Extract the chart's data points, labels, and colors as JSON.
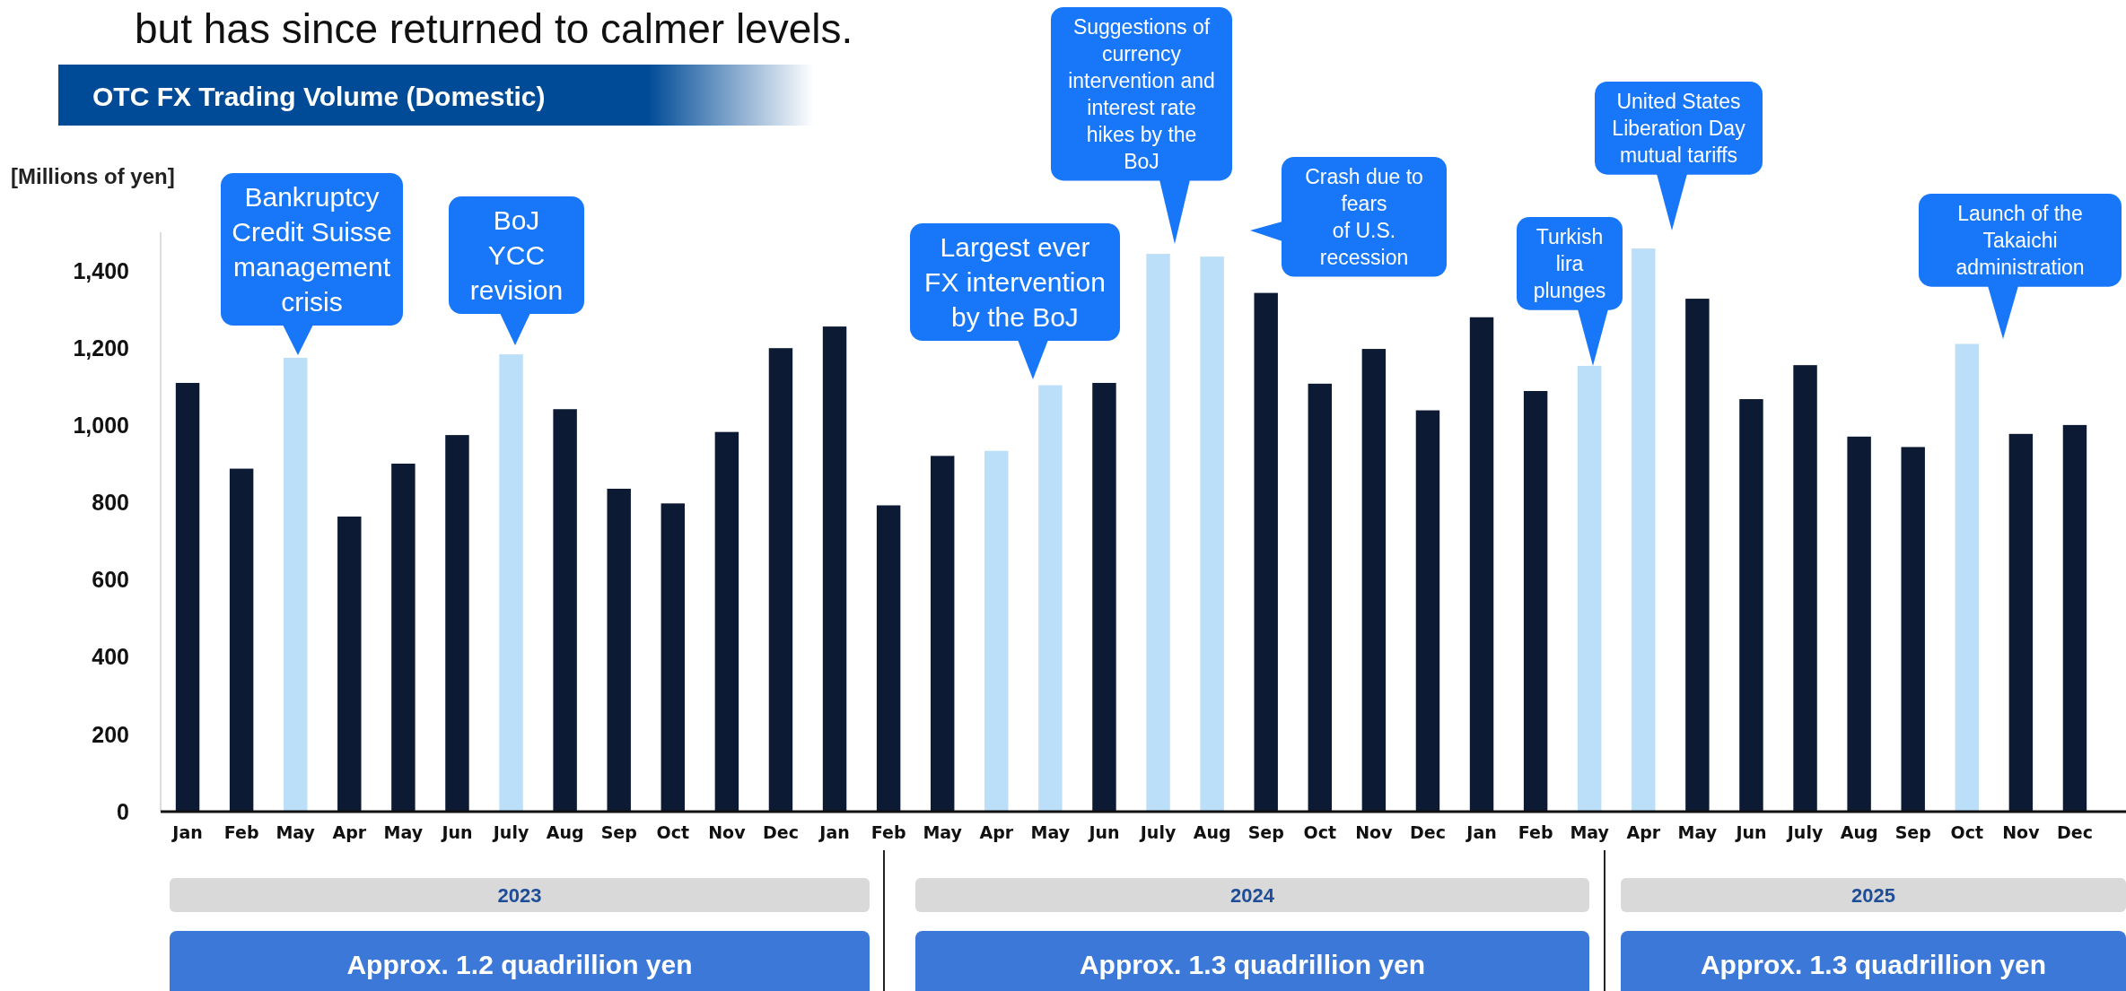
{
  "chart_data": {
    "type": "bar",
    "title": "OTC FX Trading Volume (Domestic)",
    "ylabel": "[Millions of yen]",
    "categories": [
      "Jan",
      "Feb",
      "May",
      "Apr",
      "May",
      "Jun",
      "July",
      "Aug",
      "Sep",
      "Oct",
      "Nov",
      "Dec",
      "Jan",
      "Feb",
      "May",
      "Apr",
      "May",
      "Jun",
      "July",
      "Aug",
      "Sep",
      "Oct",
      "Nov",
      "Dec",
      "Jan",
      "Feb",
      "May",
      "Apr",
      "May",
      "Jun",
      "July",
      "Aug",
      "Sep",
      "Oct",
      "Nov",
      "Dec"
    ],
    "values": [
      1110,
      888,
      1175,
      764,
      901,
      975,
      1184,
      1042,
      836,
      798,
      983,
      1200,
      1256,
      793,
      921,
      934,
      1104,
      1110,
      1444,
      1437,
      1343,
      1108,
      1198,
      1039,
      1280,
      1089,
      1154,
      1458,
      1328,
      1068,
      1156,
      971,
      944,
      1211,
      978,
      1001
    ],
    "colors": [
      "#0d1a33",
      "#0d1a33",
      "#bbdff8",
      "#0d1a33",
      "#0d1a33",
      "#0d1a33",
      "#bbdff8",
      "#0d1a33",
      "#0d1a33",
      "#0d1a33",
      "#0d1a33",
      "#0d1a33",
      "#0d1a33",
      "#0d1a33",
      "#0d1a33",
      "#bbdff8",
      "#bbdff8",
      "#0d1a33",
      "#bbdff8",
      "#bbdff8",
      "#0d1a33",
      "#0d1a33",
      "#0d1a33",
      "#0d1a33",
      "#0d1a33",
      "#0d1a33",
      "#bbdff8",
      "#bbdff8",
      "#0d1a33",
      "#0d1a33",
      "#0d1a33",
      "#0d1a33",
      "#0d1a33",
      "#bbdff8",
      "#0d1a33",
      "#0d1a33"
    ],
    "ylim": [
      0,
      1500
    ],
    "yticks": [
      {
        "value": 0,
        "label": "0"
      },
      {
        "value": 200,
        "label": "200"
      },
      {
        "value": 400,
        "label": "400"
      },
      {
        "value": 600,
        "label": "600"
      },
      {
        "value": 800,
        "label": "800"
      },
      {
        "value": 1000,
        "label": "1,000"
      },
      {
        "value": 1200,
        "label": "1,200"
      },
      {
        "value": 1400,
        "label": "1,400"
      }
    ],
    "grid": false,
    "annotations": [
      "but has since returned to calmer levels.",
      "Bankruptcy\nCredit Suisse\nmanagement\ncrisis",
      "BoJ\nYCC\nrevision",
      "Largest ever\nFX intervention\nby the BoJ",
      "Suggestions of\ncurrency\nintervention and\ninterest rate\nhikes by the\nBoJ",
      "Crash due to\nfears\nof U.S.\nrecession",
      "Turkish\nlira\nplunges",
      "United States\nLiberation Day\nmutual tariffs",
      "Launch of the\nTakaichi\nadministration",
      "2023",
      "2024",
      "2025",
      "Approx. 1.2 quadrillion yen",
      "Approx. 1.3 quadrillion yen",
      "Approx. 1.3 quadrillion yen"
    ]
  }
}
